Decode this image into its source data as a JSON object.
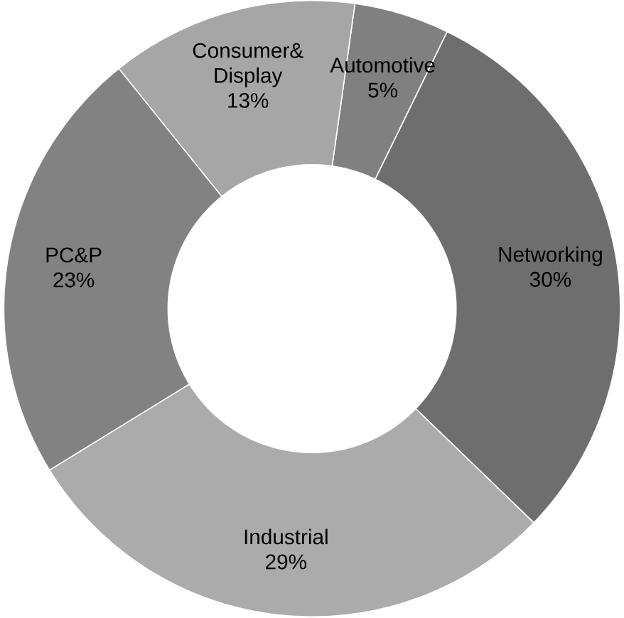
{
  "chart_data": {
    "type": "donut",
    "categories": [
      "Automotive",
      "Networking",
      "Industrial",
      "PC&P",
      "Consumer& Display"
    ],
    "values": [
      5,
      30,
      29,
      23,
      13
    ],
    "value_labels": [
      "5%",
      "30%",
      "29%",
      "23%",
      "13%"
    ],
    "colors": [
      "#808080",
      "#6e6e6e",
      "#ababab",
      "#828282",
      "#a6a6a6"
    ]
  }
}
